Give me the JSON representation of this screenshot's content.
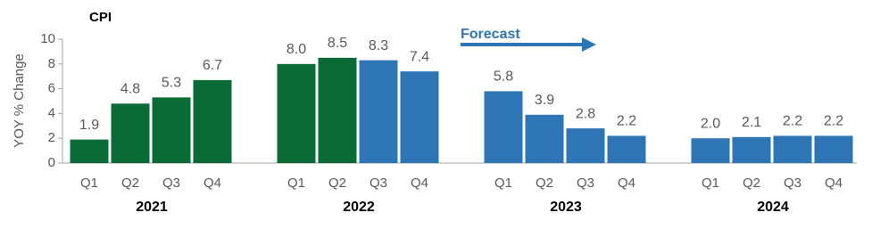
{
  "chart_data": {
    "type": "bar",
    "title": "CPI",
    "y_label": "YOY % Change",
    "annotation": "Forecast",
    "groups": [
      "2021",
      "2022",
      "2023",
      "2024"
    ],
    "categories": [
      "Q1",
      "Q2",
      "Q3",
      "Q4",
      "Q1",
      "Q2",
      "Q3",
      "Q4",
      "Q1",
      "Q2",
      "Q3",
      "Q4",
      "Q1",
      "Q2",
      "Q3",
      "Q4"
    ],
    "values": [
      1.9,
      4.8,
      5.3,
      6.7,
      8.0,
      8.5,
      8.3,
      7.4,
      5.8,
      3.9,
      2.8,
      2.2,
      2.0,
      2.1,
      2.2,
      2.2
    ],
    "value_labels": [
      "1.9",
      "4.8",
      "5.3",
      "6.7",
      "8.0",
      "8.5",
      "8.3",
      "7.4",
      "5.8",
      "3.9",
      "2.8",
      "2.2",
      "2.0",
      "2.1",
      "2.2",
      "2.2"
    ],
    "colors": [
      "#0b6b37",
      "#0b6b37",
      "#0b6b37",
      "#0b6b37",
      "#0b6b37",
      "#0b6b37",
      "#2e75b6",
      "#2e75b6",
      "#2e75b6",
      "#2e75b6",
      "#2e75b6",
      "#2e75b6",
      "#2e75b6",
      "#2e75b6",
      "#2e75b6",
      "#2e75b6"
    ],
    "ylim": [
      0,
      10
    ],
    "yticks": [
      0,
      2,
      4,
      6,
      8,
      10
    ],
    "grid": false
  }
}
